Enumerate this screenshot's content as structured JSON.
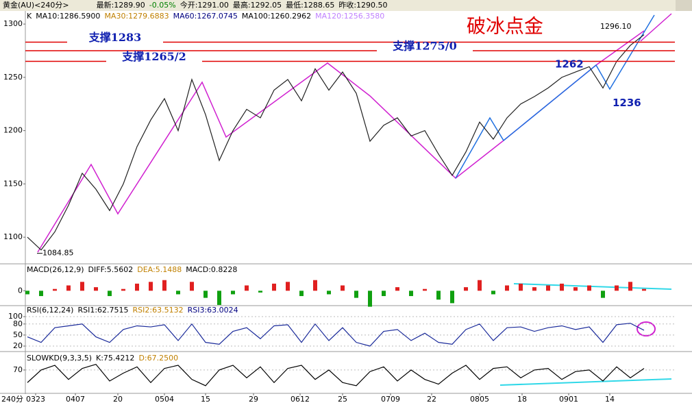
{
  "header": {
    "instrument": "黄金(AU)<240分>",
    "quotes": [
      "最新:1289.90",
      "-0.05%",
      "今开:1291.00",
      "最高:1292.05",
      "最低:1288.65",
      "昨收:1290.50"
    ],
    "headline": "破冰点金",
    "period": "240分"
  },
  "chart_data": [
    {
      "type": "line",
      "legend_items": [
        {
          "text": "K",
          "color": "#000000"
        },
        {
          "text": "MA10:1286.5900",
          "color": "#000000"
        },
        {
          "text": "MA30:1279.6883",
          "color": "#c08000"
        },
        {
          "text": "MA60:1267.0745",
          "color": "#000080"
        },
        {
          "text": "MA100:1260.2962",
          "color": "#000000"
        },
        {
          "text": "MA120:1256.3580",
          "color": "#c080ff"
        }
      ],
      "series": [
        {
          "color": "#202020",
          "values": [
            1100,
            1088,
            1105,
            1130,
            1160,
            1145,
            1125,
            1150,
            1185,
            1210,
            1230,
            1200,
            1248,
            1215,
            1172,
            1200,
            1220,
            1212,
            1238,
            1248,
            1228,
            1258,
            1238,
            1255,
            1235,
            1190,
            1205,
            1212,
            1195,
            1200,
            1178,
            1158,
            1180,
            1208,
            1192,
            1212,
            1225,
            1232,
            1240,
            1250,
            1255,
            1260,
            1240,
            1265,
            1280,
            1290
          ]
        }
      ],
      "ylim": [
        1075,
        1311
      ],
      "yticks": [
        1100,
        1150,
        1200,
        1250,
        1300
      ],
      "xticks": [
        {
          "value": 0.6,
          "label": "0323"
        },
        {
          "value": 3.5,
          "label": "0407"
        },
        {
          "value": 6.6,
          "label": "20"
        },
        {
          "value": 10,
          "label": "0504"
        },
        {
          "value": 13,
          "label": "15"
        },
        {
          "value": 16.5,
          "label": "29"
        },
        {
          "value": 19.9,
          "label": "0612"
        },
        {
          "value": 23,
          "label": "25"
        },
        {
          "value": 26.5,
          "label": "0709"
        },
        {
          "value": 29.5,
          "label": "22"
        },
        {
          "value": 33,
          "label": "0805"
        },
        {
          "value": 36.1,
          "label": "18"
        },
        {
          "value": 39.5,
          "label": "0901"
        },
        {
          "value": 42.5,
          "label": "14"
        }
      ],
      "support_lines": [
        {
          "label": "支撑1283",
          "value": 1283
        },
        {
          "label": "支撑1275/0",
          "value": 1275
        },
        {
          "label": "支撑1265/2",
          "value": 1265
        }
      ],
      "annotations": [
        {
          "text": "1084.85",
          "value": 1084.85,
          "x": 0.7
        },
        {
          "text": "1262",
          "value": 1262,
          "x": 40
        },
        {
          "text": "1236",
          "value": 1236,
          "x": 42.5
        },
        {
          "text": "1296.10",
          "value": 1296.1,
          "x": 44.8
        }
      ]
    },
    {
      "type": "bar",
      "legend_items": [
        {
          "text": "MACD(26,12,9)",
          "color": "#000000"
        },
        {
          "text": "DIFF:5.5602",
          "color": "#000000"
        },
        {
          "text": "DEA:5.1488",
          "color": "#c08000"
        },
        {
          "text": "MACD:0.8228",
          "color": "#000000"
        }
      ],
      "values": [
        -2,
        -3,
        1,
        3,
        5,
        2,
        -3,
        1,
        4,
        5,
        6,
        -2,
        5,
        -4,
        -8,
        -2,
        3,
        -1,
        4,
        5,
        -3,
        6,
        -2,
        3,
        -4,
        -9,
        -3,
        2,
        -3,
        1,
        -5,
        -7,
        2,
        6,
        -2,
        3,
        4,
        2,
        3,
        4,
        2,
        3,
        -4,
        3,
        5,
        1
      ],
      "ylim": [
        -8,
        14
      ],
      "yticks": [
        0
      ]
    },
    {
      "type": "line",
      "legend_items": [
        {
          "text": "RSI(6,12,24)",
          "color": "#000000"
        },
        {
          "text": "RSI1:62.7515",
          "color": "#000000"
        },
        {
          "text": "RSI2:63.5132",
          "color": "#c08000"
        },
        {
          "text": "RSI3:63.0024",
          "color": "#000080"
        }
      ],
      "series": [
        {
          "color": "#1a2a9a",
          "values": [
            45,
            30,
            70,
            75,
            80,
            45,
            30,
            65,
            75,
            72,
            78,
            35,
            80,
            30,
            25,
            60,
            70,
            40,
            75,
            78,
            30,
            80,
            35,
            70,
            30,
            20,
            60,
            65,
            35,
            55,
            30,
            25,
            65,
            80,
            35,
            70,
            72,
            60,
            70,
            75,
            65,
            72,
            30,
            78,
            82,
            63
          ]
        }
      ],
      "ylim": [
        7,
        128
      ],
      "yticks": [
        20,
        50,
        80,
        100
      ]
    },
    {
      "type": "line",
      "legend_items": [
        {
          "text": "SLOWKD(9,3,3,5)",
          "color": "#000000"
        },
        {
          "text": "K:75.4212",
          "color": "#000000"
        },
        {
          "text": "D:67.2500",
          "color": "#c08000"
        }
      ],
      "series": [
        {
          "color": "#000000",
          "values": [
            30,
            70,
            85,
            40,
            75,
            88,
            35,
            60,
            80,
            30,
            75,
            85,
            40,
            20,
            70,
            85,
            45,
            80,
            30,
            75,
            85,
            40,
            70,
            30,
            20,
            65,
            80,
            35,
            70,
            40,
            25,
            60,
            85,
            40,
            75,
            80,
            45,
            70,
            75,
            40,
            65,
            70,
            35,
            80,
            45,
            75
          ]
        }
      ],
      "ylim": [
        0,
        120
      ],
      "yticks": [
        70
      ]
    }
  ]
}
